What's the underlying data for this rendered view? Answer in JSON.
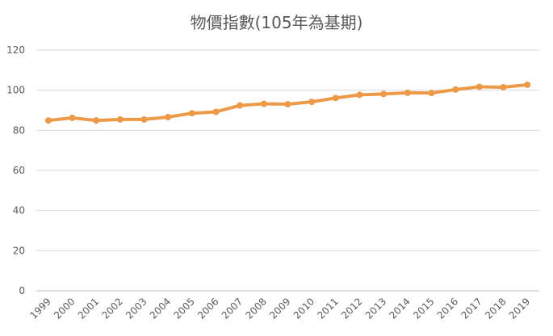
{
  "chart_data": {
    "type": "line",
    "title": "物價指數(105年為基期)",
    "xlabel": "",
    "ylabel": "",
    "ylim": [
      0,
      120
    ],
    "yticks": [
      0,
      20,
      40,
      60,
      80,
      100,
      120
    ],
    "grid": true,
    "legend": "none",
    "categories": [
      "1999",
      "2000",
      "2001",
      "2002",
      "2003",
      "2004",
      "2005",
      "2006",
      "2007",
      "2008",
      "2009",
      "2010",
      "2011",
      "2012",
      "2013",
      "2014",
      "2015",
      "2016",
      "2017",
      "2018",
      "2019"
    ],
    "series": [
      {
        "values": [
          84.9,
          86.2,
          84.9,
          85.4,
          85.4,
          86.6,
          88.5,
          89.2,
          92.4,
          93.2,
          93.0,
          94.2,
          96.1,
          97.7,
          98.1,
          98.7,
          98.6,
          100.3,
          101.7,
          101.5,
          102.7
        ],
        "color": "#ed9a48"
      }
    ]
  }
}
